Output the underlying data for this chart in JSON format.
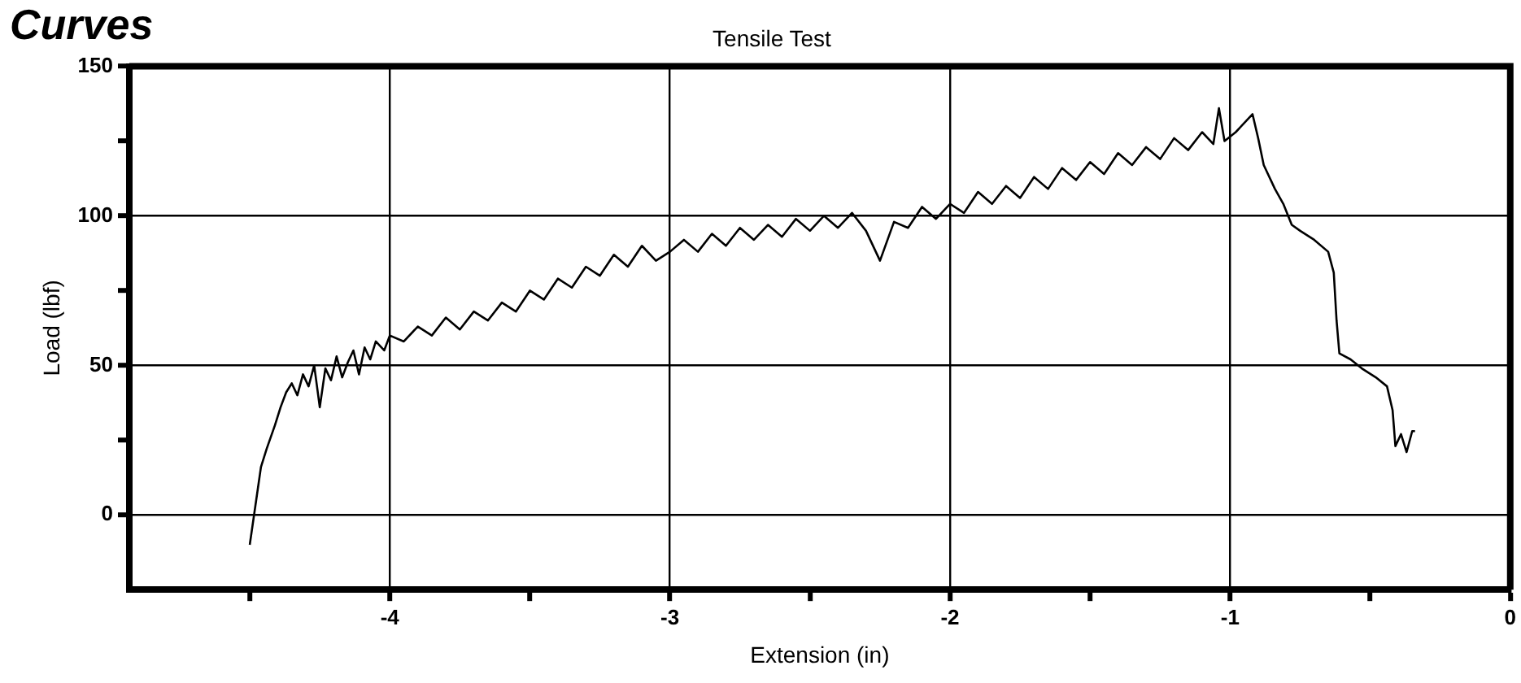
{
  "chart_data": {
    "type": "line",
    "title": "Tensile Test",
    "xlabel": "Extension (in)",
    "ylabel": "Load (lbf)",
    "annotations": [
      "Curves"
    ],
    "xlim": [
      -4.93,
      0
    ],
    "ylim": [
      -25,
      150
    ],
    "xticks": [
      {
        "value": -4.5,
        "label": null
      },
      -4,
      {
        "value": -3.5,
        "label": null
      },
      -3,
      {
        "value": -2.5,
        "label": null
      },
      -2,
      {
        "value": -1.5,
        "label": null
      },
      -1,
      {
        "value": -0.5,
        "label": null
      },
      0
    ],
    "yticks": [
      0,
      {
        "value": 25,
        "label": null
      },
      50,
      {
        "value": 75,
        "label": null
      },
      100,
      {
        "value": 125,
        "label": null
      },
      150
    ],
    "grid": true,
    "legend": false,
    "marker": "none",
    "line_style": "solid",
    "series": [
      {
        "color": "#000000",
        "x": [
          -4.5,
          -4.48,
          -4.46,
          -4.44,
          -4.41,
          -4.39,
          -4.37,
          -4.35,
          -4.33,
          -4.31,
          -4.29,
          -4.27,
          -4.25,
          -4.23,
          -4.21,
          -4.19,
          -4.17,
          -4.15,
          -4.13,
          -4.11,
          -4.09,
          -4.07,
          -4.05,
          -4.02,
          -4.0,
          -3.95,
          -3.9,
          -3.85,
          -3.8,
          -3.75,
          -3.7,
          -3.65,
          -3.6,
          -3.55,
          -3.5,
          -3.45,
          -3.4,
          -3.35,
          -3.3,
          -3.25,
          -3.2,
          -3.15,
          -3.1,
          -3.05,
          -3.0,
          -2.95,
          -2.9,
          -2.85,
          -2.8,
          -2.75,
          -2.7,
          -2.65,
          -2.6,
          -2.55,
          -2.5,
          -2.45,
          -2.4,
          -2.35,
          -2.3,
          -2.25,
          -2.2,
          -2.15,
          -2.1,
          -2.05,
          -2.0,
          -1.95,
          -1.9,
          -1.85,
          -1.8,
          -1.75,
          -1.7,
          -1.65,
          -1.6,
          -1.55,
          -1.5,
          -1.45,
          -1.4,
          -1.35,
          -1.3,
          -1.25,
          -1.2,
          -1.15,
          -1.1,
          -1.06,
          -1.04,
          -1.02,
          -0.98,
          -0.95,
          -0.92,
          -0.9,
          -0.88,
          -0.84,
          -0.81,
          -0.78,
          -0.75,
          -0.7,
          -0.65,
          -0.63,
          -0.62,
          -0.61,
          -0.57,
          -0.53,
          -0.48,
          -0.44,
          -0.42,
          -0.41,
          -0.39,
          -0.37,
          -0.35,
          -0.34
        ],
        "values": [
          -10,
          3,
          16,
          22,
          30,
          36,
          41,
          44,
          40,
          47,
          43,
          50,
          36,
          49,
          45,
          53,
          46,
          51,
          55,
          47,
          56,
          52,
          58,
          55,
          60,
          58,
          63,
          60,
          66,
          62,
          68,
          65,
          71,
          68,
          75,
          72,
          79,
          76,
          83,
          80,
          87,
          83,
          90,
          85,
          88,
          92,
          88,
          94,
          90,
          96,
          92,
          97,
          93,
          99,
          95,
          100,
          96,
          101,
          95,
          85,
          98,
          96,
          103,
          99,
          104,
          101,
          108,
          104,
          110,
          106,
          113,
          109,
          116,
          112,
          118,
          114,
          121,
          117,
          123,
          119,
          126,
          122,
          128,
          124,
          136,
          125,
          128,
          131,
          134,
          126,
          117,
          109,
          104,
          97,
          95,
          92,
          88,
          81,
          65,
          54,
          52,
          49,
          46,
          43,
          35,
          23,
          27,
          21,
          28,
          28
        ]
      }
    ]
  }
}
